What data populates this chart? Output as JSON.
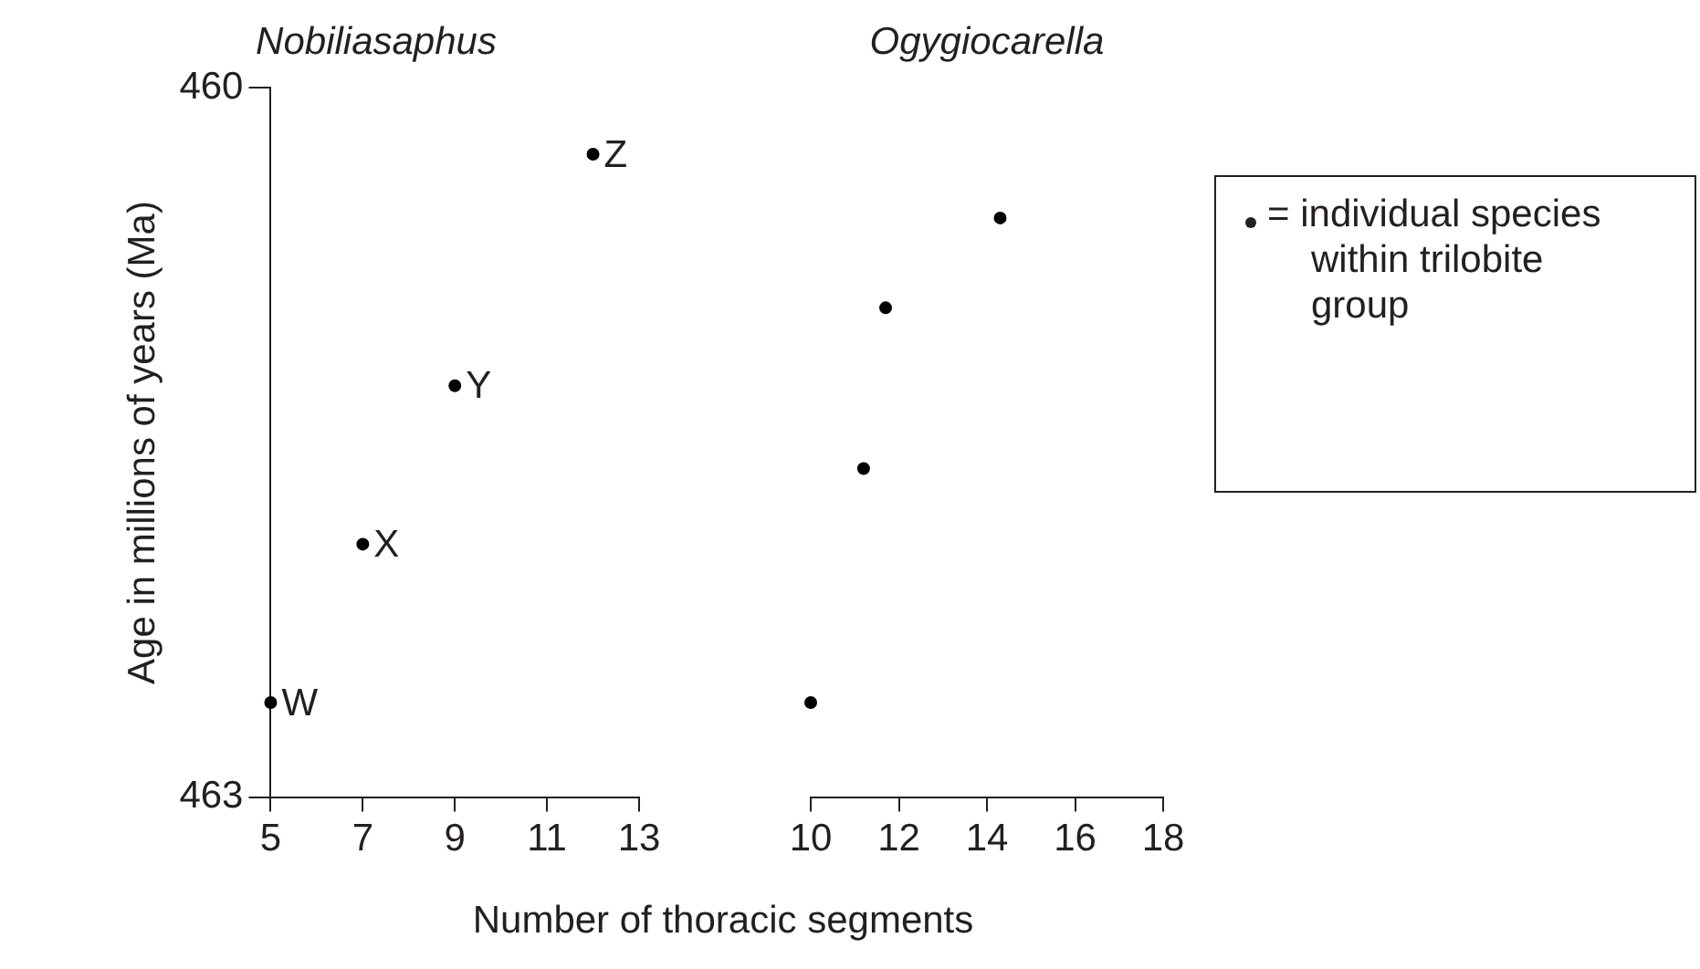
{
  "chart_data": [
    {
      "type": "scatter",
      "title": "Nobiliasaphus",
      "ylabel": "Age in millions of years (Ma)",
      "xlabel": "Number of thoracic segments",
      "series": [
        {
          "color": "#000000",
          "x": [
            5,
            7,
            9,
            12
          ],
          "values": [
            462.6,
            461.93,
            461.26,
            460.28
          ]
        }
      ],
      "xlim": [
        5,
        13
      ],
      "xticks": [
        5,
        7,
        9,
        11,
        13
      ],
      "ylim": [
        463,
        460
      ],
      "yticks": [
        460,
        463
      ],
      "marker": "circle",
      "grid": false,
      "legend": false,
      "annotations": [
        {
          "text": "W",
          "x": 5,
          "y": 462.6
        },
        {
          "text": "X",
          "x": 7,
          "y": 461.93
        },
        {
          "text": "Y",
          "x": 9,
          "y": 461.26
        },
        {
          "text": "Z",
          "x": 12,
          "y": 460.28
        }
      ]
    },
    {
      "type": "scatter",
      "title": "Ogygiocarella",
      "series": [
        {
          "color": "#000000",
          "x": [
            10,
            11.2,
            11.7,
            14.3
          ],
          "values": [
            462.6,
            461.61,
            460.93,
            460.55
          ]
        }
      ],
      "xlim": [
        10,
        18
      ],
      "xticks": [
        10,
        12,
        14,
        16,
        18
      ],
      "ylim": [
        463,
        460
      ],
      "tick_labels": "x",
      "marker": "circle",
      "grid": false,
      "legend": false,
      "annotations": [
        "= individual species within trilobite group"
      ]
    }
  ]
}
